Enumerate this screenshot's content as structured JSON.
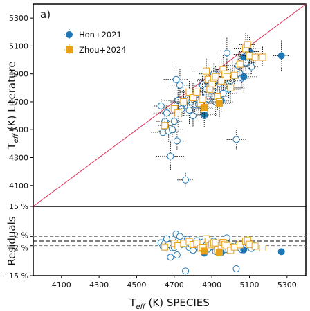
{
  "chart_data": [
    {
      "type": "scatter",
      "panel_label": "a)",
      "title": "",
      "xlabel_main": "T",
      "xlabel_sub": "eff",
      "xlabel_rest": " (K) SPECIES",
      "ylabel_main": "T",
      "ylabel_sub": "eff",
      "ylabel_rest": " (K) Literature",
      "xlim": [
        3950,
        5400
      ],
      "ylim": [
        3950,
        5400
      ],
      "x_ticks": [
        "4100",
        "4300",
        "4500",
        "4700",
        "4900",
        "5100",
        "5300"
      ],
      "y_ticks": [
        "4100",
        "4300",
        "4500",
        "4700",
        "4900",
        "5100",
        "5300"
      ],
      "one_to_one_line": true,
      "legend_position": "upper-left",
      "colors": {
        "hon": "#1f77b4",
        "zhou": "#e8a21a",
        "line": "#e0305a",
        "frame": "#000000"
      },
      "series": [
        {
          "name": "Hon+2021",
          "marker": "circle",
          "points": [
            [
              4630,
              4670
            ],
            [
              4640,
              4480
            ],
            [
              4650,
              4560
            ],
            [
              4660,
              4620
            ],
            [
              4670,
              4490
            ],
            [
              4680,
              4310
            ],
            [
              4690,
              4500
            ],
            [
              4700,
              4560
            ],
            [
              4710,
              4860
            ],
            [
              4715,
              4420
            ],
            [
              4720,
              4710
            ],
            [
              4730,
              4820
            ],
            [
              4740,
              4650
            ],
            [
              4750,
              4690
            ],
            [
              4760,
              4140
            ],
            [
              4770,
              4720
            ],
            [
              4780,
              4640
            ],
            [
              4790,
              4700
            ],
            [
              4800,
              4600
            ],
            [
              4810,
              4680
            ],
            [
              4820,
              4730
            ],
            [
              4830,
              4680
            ],
            [
              4840,
              4750
            ],
            [
              4850,
              4820
            ],
            [
              4860,
              4600
            ],
            [
              4870,
              4790
            ],
            [
              4880,
              4720
            ],
            [
              4890,
              4850
            ],
            [
              4900,
              4780
            ],
            [
              4910,
              4900
            ],
            [
              4920,
              4700
            ],
            [
              4930,
              4880
            ],
            [
              4940,
              4830
            ],
            [
              4950,
              4900
            ],
            [
              4960,
              4760
            ],
            [
              4970,
              4860
            ],
            [
              4980,
              5050
            ],
            [
              4990,
              4790
            ],
            [
              5000,
              4850
            ],
            [
              5010,
              4890
            ],
            [
              5030,
              4430
            ],
            [
              5040,
              4960
            ],
            [
              5050,
              4900
            ],
            [
              5060,
              4870
            ],
            [
              5070,
              5020
            ],
            [
              5080,
              4980
            ],
            [
              5090,
              5040
            ],
            [
              5100,
              5060
            ],
            [
              5110,
              4950
            ],
            [
              5120,
              5030
            ],
            [
              5270,
              5030
            ],
            [
              4860,
              4610
            ],
            [
              4950,
              4710
            ],
            [
              5070,
              4880
            ]
          ],
          "filled": [
            [
              4860,
              4610
            ],
            [
              4950,
              4710
            ],
            [
              5070,
              4880
            ],
            [
              5070,
              5020
            ],
            [
              5100,
              5060
            ],
            [
              5270,
              5030
            ]
          ]
        },
        {
          "name": "Zhou+2024",
          "marker": "square",
          "points": [
            [
              4650,
              4530
            ],
            [
              4700,
              4650
            ],
            [
              4720,
              4620
            ],
            [
              4750,
              4700
            ],
            [
              4780,
              4770
            ],
            [
              4800,
              4730
            ],
            [
              4820,
              4770
            ],
            [
              4840,
              4690
            ],
            [
              4850,
              4720
            ],
            [
              4860,
              4650
            ],
            [
              4870,
              4920
            ],
            [
              4880,
              4860
            ],
            [
              4890,
              4790
            ],
            [
              4900,
              4830
            ],
            [
              4910,
              4870
            ],
            [
              4920,
              4880
            ],
            [
              4930,
              4740
            ],
            [
              4940,
              4700
            ],
            [
              4950,
              4850
            ],
            [
              4960,
              4930
            ],
            [
              4970,
              4900
            ],
            [
              4980,
              4880
            ],
            [
              5000,
              4800
            ],
            [
              5020,
              4890
            ],
            [
              5050,
              4970
            ],
            [
              5080,
              5080
            ],
            [
              5090,
              5110
            ],
            [
              5100,
              5030
            ],
            [
              5130,
              5020
            ],
            [
              5170,
              5020
            ],
            [
              4940,
              4690
            ],
            [
              4860,
              4660
            ]
          ],
          "filled": [
            [
              4940,
              4690
            ],
            [
              4860,
              4660
            ]
          ]
        }
      ]
    },
    {
      "type": "scatter",
      "ylabel": "Residuals",
      "xlim": [
        3950,
        5400
      ],
      "ylim": [
        -15,
        15
      ],
      "y_ticks": [
        "15 %",
        "2 %",
        "−2 %",
        "−15 %"
      ],
      "x_ticks": [
        "4100",
        "4300",
        "4500",
        "4700",
        "4900",
        "5100",
        "5300"
      ],
      "reference_lines": [
        2,
        0,
        -2
      ],
      "series": [
        {
          "name": "Hon+2021",
          "values_percent": [
            [
              4630,
              -0.7
            ],
            [
              4640,
              -2.2
            ],
            [
              4650,
              -1.0
            ],
            [
              4660,
              1.0
            ],
            [
              4670,
              -1.5
            ],
            [
              4680,
              -7.0
            ],
            [
              4690,
              -3.0
            ],
            [
              4700,
              -2.8
            ],
            [
              4710,
              3.0
            ],
            [
              4715,
              -6.0
            ],
            [
              4720,
              0.0
            ],
            [
              4730,
              2.0
            ],
            [
              4740,
              -1.5
            ],
            [
              4750,
              -1.2
            ],
            [
              4760,
              -13.0
            ],
            [
              4770,
              0.8
            ],
            [
              4780,
              -2.8
            ],
            [
              4790,
              -1.5
            ],
            [
              4800,
              -4.0
            ],
            [
              4810,
              -1.5
            ],
            [
              4820,
              0.2
            ],
            [
              4830,
              -3.0
            ],
            [
              4840,
              -2.0
            ],
            [
              4850,
              -0.5
            ],
            [
              4860,
              -5.2
            ],
            [
              4870,
              -1.8
            ],
            [
              4880,
              -3.5
            ],
            [
              4890,
              -0.8
            ],
            [
              4900,
              -2.4
            ],
            [
              4910,
              -0.1
            ],
            [
              4920,
              -4.5
            ],
            [
              4930,
              -1.0
            ],
            [
              4940,
              -2.3
            ],
            [
              4950,
              -1.0
            ],
            [
              4960,
              -4.0
            ],
            [
              4970,
              -2.2
            ],
            [
              4980,
              1.4
            ],
            [
              4990,
              -4.0
            ],
            [
              5000,
              -3.0
            ],
            [
              5010,
              -2.4
            ],
            [
              5030,
              -12.0
            ],
            [
              5040,
              -1.6
            ],
            [
              5050,
              -3.0
            ],
            [
              5060,
              -3.8
            ],
            [
              5070,
              -1.0
            ],
            [
              5080,
              -2.0
            ],
            [
              5090,
              -1.0
            ],
            [
              5100,
              -0.8
            ],
            [
              5110,
              -3.2
            ],
            [
              5120,
              -1.8
            ],
            [
              5270,
              -4.6
            ]
          ],
          "filled": [
            [
              4860,
              -5.2
            ],
            [
              4950,
              -5.0
            ],
            [
              5070,
              -3.8
            ],
            [
              5070,
              -1.0
            ],
            [
              5100,
              -0.8
            ],
            [
              5270,
              -4.6
            ]
          ]
        },
        {
          "name": "Zhou+2024",
          "values_percent": [
            [
              4650,
              -2.6
            ],
            [
              4700,
              -1.0
            ],
            [
              4720,
              -2.1
            ],
            [
              4750,
              -1.0
            ],
            [
              4780,
              -0.2
            ],
            [
              4800,
              -1.5
            ],
            [
              4820,
              -1.0
            ],
            [
              4840,
              -3.1
            ],
            [
              4850,
              -2.7
            ],
            [
              4860,
              -4.3
            ],
            [
              4870,
              1.0
            ],
            [
              4880,
              0.0
            ],
            [
              4890,
              -2.0
            ],
            [
              4900,
              -1.4
            ],
            [
              4910,
              -0.8
            ],
            [
              4920,
              -0.8
            ],
            [
              4930,
              -3.8
            ],
            [
              4940,
              -4.8
            ],
            [
              4950,
              -2.0
            ],
            [
              4960,
              -0.6
            ],
            [
              4970,
              -1.4
            ],
            [
              4980,
              -2.0
            ],
            [
              5000,
              -4.0
            ],
            [
              5020,
              -2.6
            ],
            [
              5050,
              -1.6
            ],
            [
              5080,
              0.0
            ],
            [
              5090,
              0.4
            ],
            [
              5100,
              -1.4
            ],
            [
              5130,
              -2.2
            ],
            [
              5170,
              -3.0
            ]
          ],
          "filled": [
            [
              4940,
              -4.8
            ],
            [
              4860,
              -4.3
            ]
          ]
        }
      ]
    }
  ]
}
